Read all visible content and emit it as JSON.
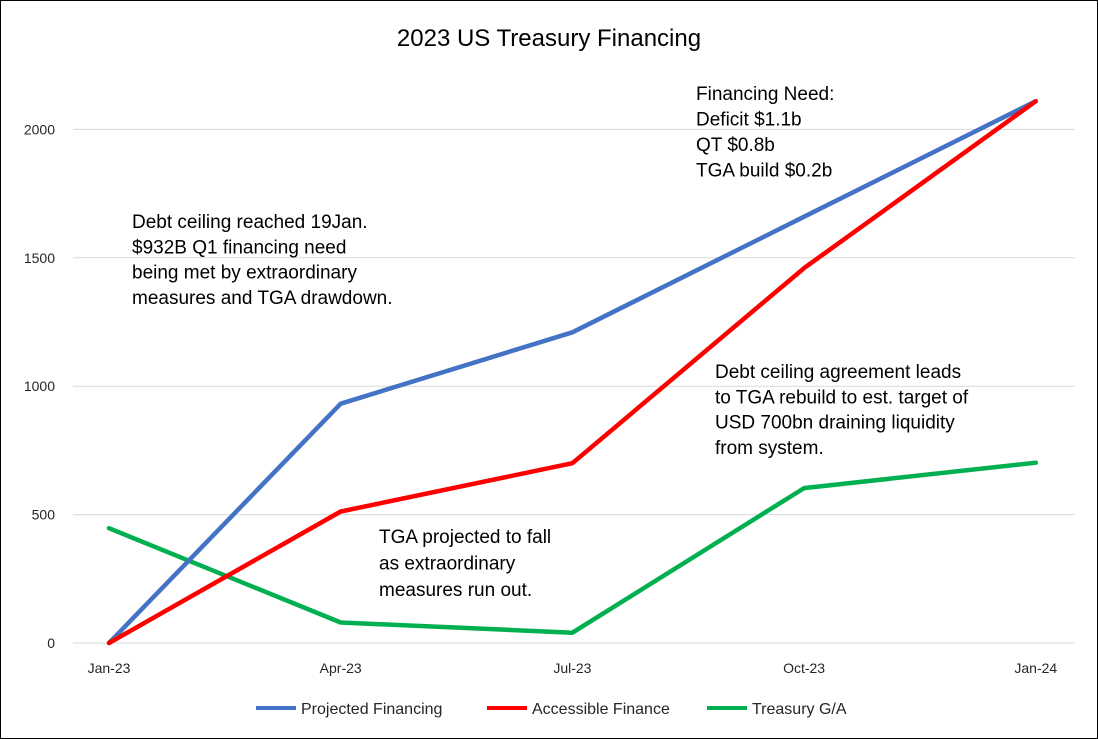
{
  "chart_data": {
    "type": "line",
    "title": "2023 US Treasury Financing",
    "xlabel": "",
    "ylabel": "",
    "categories": [
      "Jan-23",
      "Apr-23",
      "Jul-23",
      "Oct-23",
      "Jan-24"
    ],
    "ylim": [
      0,
      2500
    ],
    "yticks": [
      0,
      500,
      1000,
      1500,
      2000
    ],
    "grid": true,
    "legend_position": "bottom",
    "series": [
      {
        "name": "Projected Financing",
        "color": "#4472c4",
        "values": [
          0,
          932,
          1210,
          1660,
          2110
        ]
      },
      {
        "name": "Accessible Finance",
        "color": "#ff0000",
        "values": [
          0,
          512,
          700,
          1460,
          2110
        ]
      },
      {
        "name": "Treasury G/A",
        "color": "#00b050",
        "values": [
          447,
          80,
          40,
          603,
          702
        ]
      }
    ],
    "annotations": [
      {
        "lines": [
          "Financing Need:",
          "Deficit $1.1b",
          "QT $0.8b",
          "TGA build $0.2b"
        ]
      },
      {
        "lines": [
          "Debt ceiling reached 19Jan.",
          "$932B Q1 financing need",
          "being met by extraordinary",
          "measures and TGA drawdown."
        ]
      },
      {
        "lines": [
          "Debt ceiling agreement leads",
          "to TGA rebuild to est. target of",
          "USD 700bn draining liquidity",
          "from system."
        ]
      },
      {
        "lines": [
          "TGA projected to fall",
          "as extraordinary",
          "measures run out."
        ]
      }
    ]
  }
}
